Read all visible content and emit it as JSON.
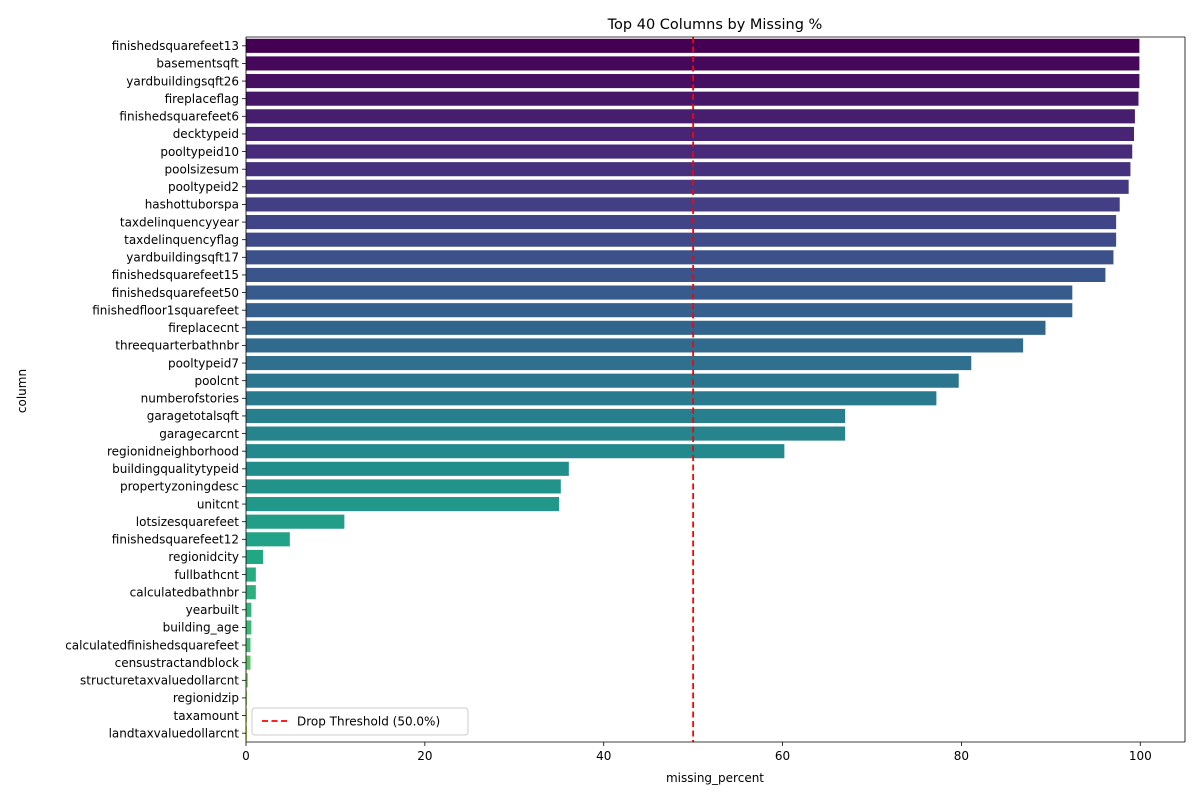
{
  "chart_data": {
    "type": "bar",
    "orientation": "horizontal",
    "title": "Top 40 Columns by Missing %",
    "xlabel": "missing_percent",
    "ylabel": "column",
    "xlim": [
      0,
      105
    ],
    "xticks": [
      0,
      20,
      40,
      60,
      80,
      100
    ],
    "grid": false,
    "legend_position": "lower-left",
    "palette": "viridis",
    "palette_start": "#440154",
    "palette_end": "#bddf26",
    "threshold": {
      "value": 50,
      "label": "Drop Threshold (50.0%)",
      "color": "#ff0000",
      "style": "dashed"
    },
    "categories": [
      "finishedsquarefeet13",
      "basementsqft",
      "yardbuildingsqft26",
      "fireplaceflag",
      "finishedsquarefeet6",
      "decktypeid",
      "pooltypeid10",
      "poolsizesum",
      "pooltypeid2",
      "hashottuborspa",
      "taxdelinquencyyear",
      "taxdelinquencyflag",
      "yardbuildingsqft17",
      "finishedsquarefeet15",
      "finishedsquarefeet50",
      "finishedfloor1squarefeet",
      "fireplacecnt",
      "threequarterbathnbr",
      "pooltypeid7",
      "poolcnt",
      "numberofstories",
      "garagetotalsqft",
      "garagecarcnt",
      "regionidneighborhood",
      "buildingqualitytypeid",
      "propertyzoningdesc",
      "unitcnt",
      "lotsizesquarefeet",
      "finishedsquarefeet12",
      "regionidcity",
      "fullbathcnt",
      "calculatedbathnbr",
      "yearbuilt",
      "building_age",
      "calculatedfinishedsquarefeet",
      "censustractandblock",
      "structuretaxvaluedollarcnt",
      "regionidzip",
      "taxamount",
      "landtaxvaluedollarcnt"
    ],
    "values": [
      99.9,
      99.9,
      99.9,
      99.8,
      99.4,
      99.3,
      99.1,
      98.9,
      98.7,
      97.7,
      97.3,
      97.3,
      97.0,
      96.1,
      92.4,
      92.4,
      89.4,
      86.9,
      81.1,
      79.7,
      77.2,
      67.0,
      67.0,
      60.2,
      36.1,
      35.2,
      35.0,
      11.0,
      4.9,
      1.9,
      1.1,
      1.1,
      0.6,
      0.6,
      0.5,
      0.5,
      0.2,
      0.1,
      0.1,
      0.1
    ]
  }
}
